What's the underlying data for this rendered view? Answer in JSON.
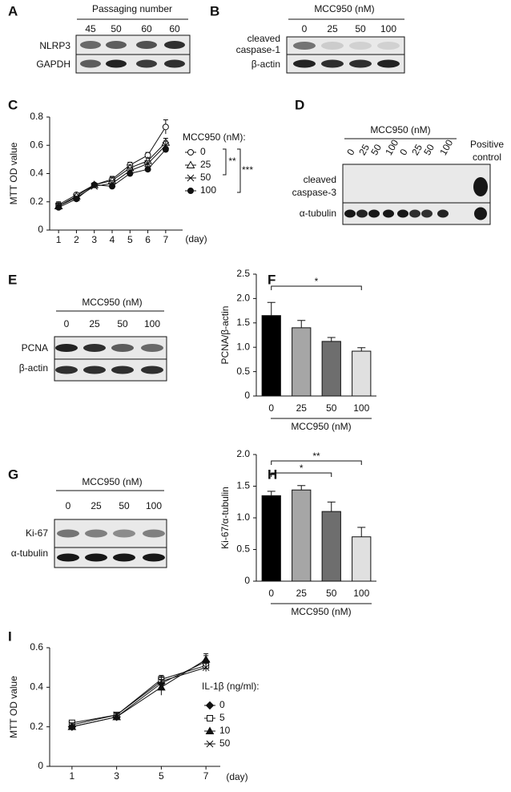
{
  "blots": [
    {
      "panel": "A",
      "header": "Passaging number",
      "lanes": [
        "45",
        "50",
        "60",
        "60"
      ],
      "rows": [
        [
          "NLRP3"
        ],
        [
          "GAPDH"
        ]
      ]
    },
    {
      "panel": "B",
      "header": "MCC950 (nM)",
      "lanes": [
        "0",
        "25",
        "50",
        "100"
      ],
      "rows": [
        [
          "cleaved",
          "caspase-1"
        ],
        [
          "β-actin"
        ]
      ]
    },
    {
      "panel": "D",
      "header": "MCC950 (nM)",
      "lanes": [
        "0",
        "25",
        "50",
        "100",
        "0",
        "25",
        "50",
        "100"
      ],
      "rows": [
        [
          "cleaved",
          "caspase-3"
        ],
        [
          "α-tubulin"
        ]
      ],
      "extra": [
        "Positive",
        "control"
      ]
    },
    {
      "panel": "E",
      "header": "MCC950 (nM)",
      "lanes": [
        "0",
        "25",
        "50",
        "100"
      ],
      "rows": [
        [
          "PCNA"
        ],
        [
          "β-actin"
        ]
      ]
    },
    {
      "panel": "G",
      "header": "MCC950 (nM)",
      "lanes": [
        "0",
        "25",
        "50",
        "100"
      ],
      "rows": [
        [
          "Ki-67"
        ],
        [
          "α-tubulin"
        ]
      ]
    }
  ],
  "chart_data": [
    {
      "type": "line",
      "panel": "C",
      "y_label": "MTT OD value",
      "x_label": "(day)",
      "legend_title": "MCC950 (nM):",
      "x": [
        1,
        2,
        3,
        4,
        5,
        6,
        7
      ],
      "xlim": [
        0.5,
        7.5
      ],
      "xticks": [
        1,
        2,
        3,
        4,
        5,
        6,
        7
      ],
      "ylim": [
        0,
        0.8
      ],
      "yticks": [
        0,
        0.2,
        0.4,
        0.6,
        0.8
      ],
      "series": [
        {
          "name": "0",
          "color": "#111111",
          "marker": "circle-open",
          "values": [
            0.18,
            0.25,
            0.32,
            0.36,
            0.46,
            0.53,
            0.73
          ],
          "errors": [
            0.02,
            0.01,
            0.01,
            0.02,
            0.02,
            0.02,
            0.05
          ]
        },
        {
          "name": "25",
          "color": "#111111",
          "marker": "triangle-open",
          "values": [
            0.17,
            0.24,
            0.32,
            0.35,
            0.44,
            0.49,
            0.62
          ],
          "errors": [
            0.02,
            0.01,
            0.01,
            0.02,
            0.02,
            0.02,
            0.03
          ]
        },
        {
          "name": "50",
          "color": "#111111",
          "marker": "cross",
          "values": [
            0.17,
            0.23,
            0.31,
            0.33,
            0.42,
            0.47,
            0.6
          ],
          "errors": [
            0.02,
            0.01,
            0.01,
            0.02,
            0.02,
            0.02,
            0.03
          ]
        },
        {
          "name": "100",
          "color": "#111111",
          "marker": "circle",
          "values": [
            0.16,
            0.22,
            0.32,
            0.31,
            0.4,
            0.43,
            0.57
          ],
          "errors": [
            0.02,
            0.01,
            0.01,
            0.02,
            0.02,
            0.02,
            0.02
          ]
        }
      ],
      "annotations": [
        "**",
        "***"
      ]
    },
    {
      "type": "bar",
      "panel": "F",
      "y_label": "PCNA/β-actin",
      "x_label": "MCC950 (nM)",
      "categories": [
        "0",
        "25",
        "50",
        "100"
      ],
      "values": [
        1.65,
        1.4,
        1.12,
        0.92
      ],
      "errors": [
        0.27,
        0.15,
        0.08,
        0.07
      ],
      "colors": [
        "#000000",
        "#a6a6a6",
        "#6e6e6e",
        "#e0e0e0"
      ],
      "ylim": [
        0,
        2.5
      ],
      "yticks": [
        0,
        0.5,
        {
          "value": 1,
          "label": "1.0"
        },
        1.5,
        {
          "value": 2,
          "label": "2.0"
        },
        2.5
      ],
      "annotations": [
        "*"
      ]
    },
    {
      "type": "bar",
      "panel": "H",
      "y_label": "Ki-67/α-tubulin",
      "x_label": "MCC950 (nM)",
      "categories": [
        "0",
        "25",
        "50",
        "100"
      ],
      "values": [
        1.35,
        1.44,
        1.1,
        0.7
      ],
      "errors": [
        0.07,
        0.07,
        0.15,
        0.15
      ],
      "colors": [
        "#000000",
        "#a6a6a6",
        "#6e6e6e",
        "#e0e0e0"
      ],
      "ylim": [
        0,
        2
      ],
      "yticks": [
        0,
        0.5,
        {
          "value": 1,
          "label": "1.0"
        },
        1.5,
        {
          "value": 2,
          "label": "2.0"
        }
      ],
      "annotations": [
        "*",
        "**"
      ]
    },
    {
      "type": "line",
      "panel": "I",
      "y_label": "MTT OD value",
      "x_label": "(day)",
      "legend_title": "IL-1β (ng/ml):",
      "x": [
        1,
        3,
        5,
        7
      ],
      "xlim": [
        0,
        8
      ],
      "xticks": [
        1,
        3,
        5,
        7
      ],
      "ylim": [
        0,
        0.6
      ],
      "yticks": [
        0,
        0.2,
        0.4,
        0.6
      ],
      "series": [
        {
          "name": "0",
          "color": "#111111",
          "marker": "diamond",
          "values": [
            0.2,
            0.25,
            0.42,
            0.53
          ],
          "errors": [
            0.01,
            0.01,
            0.02,
            0.03
          ]
        },
        {
          "name": "5",
          "color": "#111111",
          "marker": "square-open",
          "values": [
            0.22,
            0.26,
            0.44,
            0.51
          ],
          "errors": [
            0.01,
            0.01,
            0.02,
            0.02
          ]
        },
        {
          "name": "10",
          "color": "#111111",
          "marker": "triangle",
          "values": [
            0.2,
            0.25,
            0.4,
            0.54
          ],
          "errors": [
            0.01,
            0.01,
            0.04,
            0.03
          ]
        },
        {
          "name": "50",
          "color": "#111111",
          "marker": "cross",
          "values": [
            0.21,
            0.26,
            0.43,
            0.5
          ],
          "errors": [
            0.01,
            0.01,
            0.02,
            0.02
          ]
        }
      ]
    }
  ]
}
